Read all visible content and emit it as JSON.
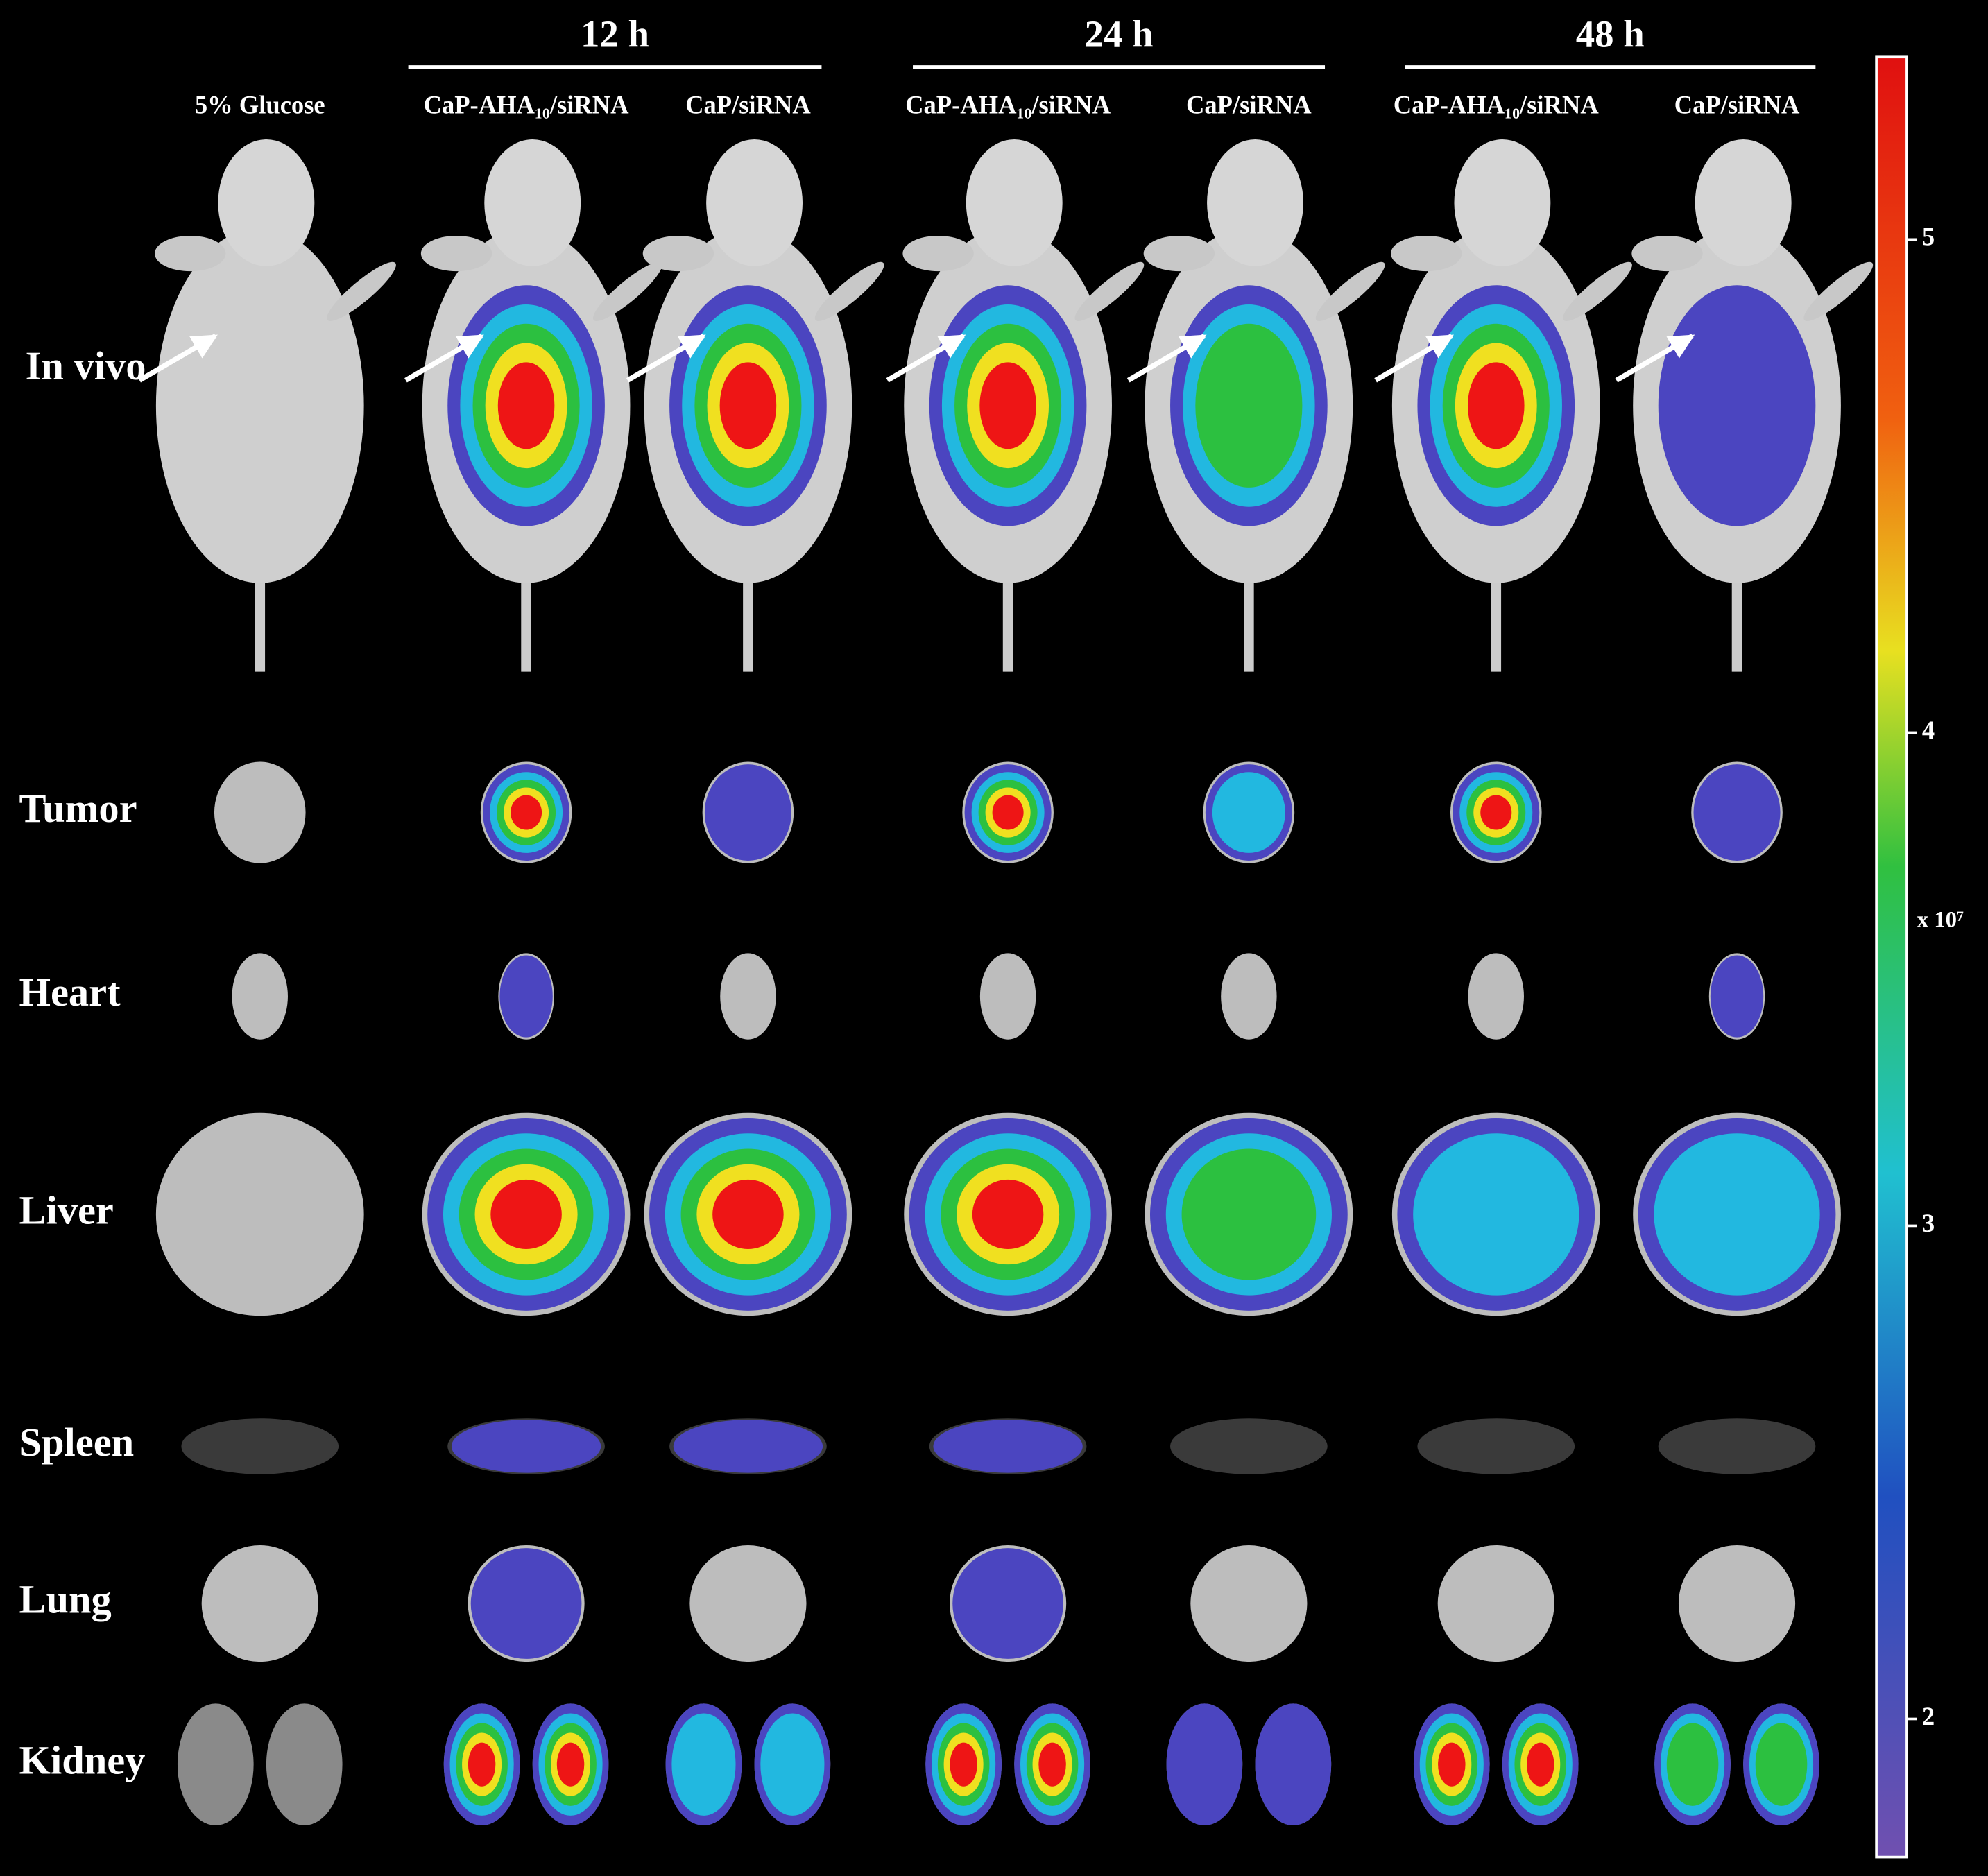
{
  "timepoints": [
    "12 h",
    "24 h",
    "48 h"
  ],
  "columns": [
    "5% Glucose",
    "CaP-AHA₁₀/siRNA",
    "CaP/siRNA",
    "CaP-AHA₁₀/siRNA",
    "CaP/siRNA",
    "CaP-AHA₁₀/siRNA",
    "CaP/siRNA"
  ],
  "rows": [
    "In vivo",
    "Tumor",
    "Heart",
    "Liver",
    "Spleen",
    "Lung",
    "Kidney"
  ],
  "colorbar": {
    "lim": [
      1.72,
      5.37
    ],
    "ticks": [
      2,
      3,
      4,
      5
    ],
    "multiplier": "x 10⁷"
  }
}
